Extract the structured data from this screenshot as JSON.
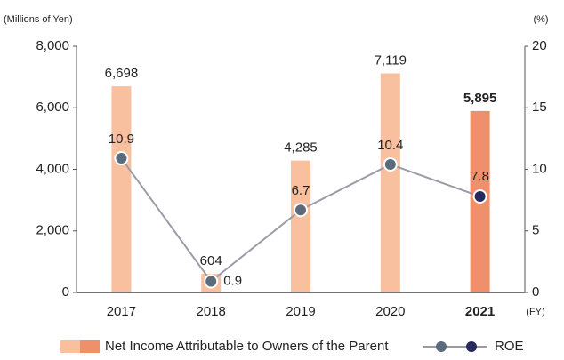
{
  "chart_data": {
    "type": "bar_line",
    "y_axis_label": "(Millions of Yen)",
    "y2_axis_label": "(%)",
    "x_axis_label": "(FY)",
    "categories": [
      "2017",
      "2018",
      "2019",
      "2020",
      "2021"
    ],
    "highlight": 4,
    "series": [
      {
        "name": "Net Income Attributable to Owners of the Parent",
        "type": "bar",
        "color": "#f9c0a0",
        "highlight_color": "#f0906a",
        "values": [
          6698,
          604,
          4285,
          7119,
          5895
        ],
        "value_labels": [
          "6,698",
          "604",
          "4,285",
          "7,119",
          "5,895"
        ]
      },
      {
        "name": "ROE",
        "type": "line",
        "axis": "y2",
        "color": "#9b9ba8",
        "marker_color": "#5c6b7c",
        "highlight_color": "#272a5c",
        "values": [
          10.9,
          0.9,
          6.7,
          10.4,
          7.8
        ]
      }
    ],
    "ylim": [
      0,
      8000
    ],
    "yticks": [
      0,
      {
        "value": 2000,
        "label": "2,000"
      },
      {
        "value": 4000,
        "label": "4,000"
      },
      {
        "value": 6000,
        "label": "6,000"
      },
      {
        "value": 8000,
        "label": "8,000"
      }
    ],
    "y2lim": [
      0,
      20
    ],
    "y2ticks": [
      0,
      5,
      10,
      15,
      20
    ]
  }
}
